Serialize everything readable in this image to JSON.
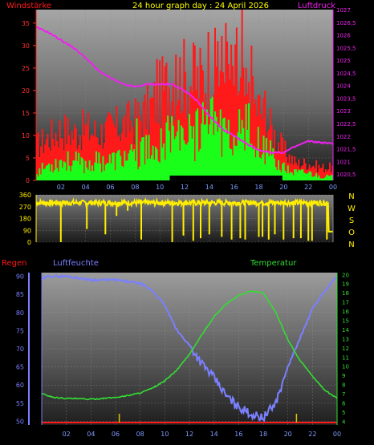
{
  "chart_data": [
    {
      "type": "line",
      "title": "24 hour graph day : 24 April 2026",
      "label_left": "Windstärke",
      "label_right": "Luftdruck",
      "x_ticks": [
        "02",
        "04",
        "06",
        "08",
        "10",
        "12",
        "14",
        "16",
        "18",
        "20",
        "22",
        "00"
      ],
      "y_left": {
        "lim": [
          0,
          38
        ],
        "ticks": [
          "0",
          "5",
          "10",
          "15",
          "20",
          "25",
          "30",
          "35"
        ]
      },
      "y_right": {
        "lim": [
          1020.25,
          1027
        ],
        "ticks": [
          "1020,5",
          "1021",
          "1021,5",
          "1022",
          "1022,5",
          "1023",
          "1023,5",
          "1024",
          "1024,5",
          "1025",
          "1025,5",
          "1026",
          "1026,5",
          "1027"
        ]
      },
      "series": [
        {
          "key": "gust",
          "color": "#ff1a1a",
          "control": [
            [
              0,
              8
            ],
            [
              1,
              10
            ],
            [
              2,
              12
            ],
            [
              3,
              11
            ],
            [
              4,
              12
            ],
            [
              5,
              11
            ],
            [
              6,
              12
            ],
            [
              7,
              13
            ],
            [
              8,
              14
            ],
            [
              9,
              16
            ],
            [
              10,
              20
            ],
            [
              11,
              24
            ],
            [
              12,
              24
            ],
            [
              13,
              23
            ],
            [
              14,
              25
            ],
            [
              15,
              26
            ],
            [
              16,
              24
            ],
            [
              17,
              19
            ],
            [
              18,
              17
            ],
            [
              19,
              12
            ],
            [
              20,
              7
            ],
            [
              21,
              4
            ],
            [
              22,
              4
            ],
            [
              23,
              3
            ],
            [
              24,
              3
            ]
          ],
          "spikes": [
            [
              9.7,
              27
            ],
            [
              11.2,
              28
            ],
            [
              12.8,
              30
            ],
            [
              13.9,
              33
            ],
            [
              14.6,
              31
            ],
            [
              15.3,
              35
            ],
            [
              16.1,
              34
            ],
            [
              16.6,
              38
            ],
            [
              17.3,
              30
            ],
            [
              18.4,
              20
            ]
          ]
        },
        {
          "key": "wind",
          "color": "#1aff1a",
          "control": [
            [
              0,
              2
            ],
            [
              1,
              4
            ],
            [
              2,
              5
            ],
            [
              3,
              5
            ],
            [
              4,
              4
            ],
            [
              5,
              5
            ],
            [
              6,
              5
            ],
            [
              7,
              6
            ],
            [
              8,
              6
            ],
            [
              9,
              8
            ],
            [
              10,
              10
            ],
            [
              11,
              13
            ],
            [
              12,
              12
            ],
            [
              13,
              12
            ],
            [
              14,
              14
            ],
            [
              15,
              14
            ],
            [
              16,
              13
            ],
            [
              17,
              10
            ],
            [
              18,
              9
            ],
            [
              19,
              6
            ],
            [
              20,
              3
            ],
            [
              21,
              2
            ],
            [
              22,
              2
            ],
            [
              23,
              1
            ],
            [
              24,
              1
            ]
          ]
        },
        {
          "key": "pressure",
          "color": "#ee22ee",
          "control": [
            [
              0,
              1026.3
            ],
            [
              1,
              1026.1
            ],
            [
              2,
              1025.8
            ],
            [
              3,
              1025.5
            ],
            [
              4,
              1025.1
            ],
            [
              5,
              1024.6
            ],
            [
              6,
              1024.3
            ],
            [
              7,
              1024.05
            ],
            [
              8,
              1023.95
            ],
            [
              9,
              1024.05
            ],
            [
              10,
              1024.05
            ],
            [
              11,
              1024.05
            ],
            [
              12,
              1023.8
            ],
            [
              13,
              1023.4
            ],
            [
              14,
              1022.8
            ],
            [
              15,
              1022.3
            ],
            [
              16,
              1022.0
            ],
            [
              17,
              1021.7
            ],
            [
              18,
              1021.45
            ],
            [
              19,
              1021.35
            ],
            [
              20,
              1021.35
            ],
            [
              21,
              1021.6
            ],
            [
              22,
              1021.8
            ],
            [
              23,
              1021.75
            ],
            [
              24,
              1021.7
            ]
          ]
        }
      ]
    },
    {
      "type": "line",
      "label_right": [
        "N",
        "W",
        "S",
        "O",
        "N"
      ],
      "x_ticks": [
        "02",
        "04",
        "06",
        "08",
        "10",
        "12",
        "14",
        "16",
        "18",
        "20",
        "22",
        "00"
      ],
      "y": {
        "lim": [
          0,
          360
        ],
        "ticks": [
          "0",
          "90",
          "180",
          "270",
          "360"
        ]
      },
      "series": [
        {
          "key": "direction",
          "color": "#ffee00",
          "base": 300,
          "dips": [
            [
              2.0,
              0
            ],
            [
              4.1,
              100
            ],
            [
              5.6,
              60
            ],
            [
              6.5,
              200
            ],
            [
              7.4,
              240
            ],
            [
              8.5,
              20
            ],
            [
              11.0,
              0
            ],
            [
              11.9,
              50
            ],
            [
              12.7,
              10
            ],
            [
              13.3,
              30
            ],
            [
              14.0,
              60
            ],
            [
              15.0,
              40
            ],
            [
              15.8,
              20
            ],
            [
              16.5,
              30
            ],
            [
              16.9,
              20
            ],
            [
              18.0,
              40
            ],
            [
              18.3,
              40
            ],
            [
              18.8,
              20
            ],
            [
              19.3,
              60
            ],
            [
              20.0,
              20
            ],
            [
              20.8,
              30
            ],
            [
              21.4,
              30
            ],
            [
              22.0,
              10
            ],
            [
              22.3,
              10
            ],
            [
              23.5,
              20
            ]
          ],
          "end_value": 80
        }
      ]
    },
    {
      "type": "line",
      "label_left": "Regen",
      "label_mid": "Luftfeuchte",
      "label_right": "Temperatur",
      "x_ticks": [
        "02",
        "04",
        "06",
        "08",
        "10",
        "12",
        "14",
        "16",
        "18",
        "20",
        "22",
        "00"
      ],
      "y_left": {
        "lim": [
          49,
          91
        ],
        "ticks": [
          "50",
          "55",
          "60",
          "65",
          "70",
          "75",
          "80",
          "85",
          "90"
        ]
      },
      "y_right": {
        "lim": [
          3.6,
          20.2
        ],
        "ticks": [
          "4",
          "5",
          "6",
          "7",
          "8",
          "9",
          "10",
          "11",
          "12",
          "13",
          "14",
          "15",
          "16",
          "17",
          "18",
          "19",
          "20"
        ]
      },
      "series": [
        {
          "key": "humidity",
          "color": "#7a80ff",
          "control": [
            [
              0,
              89
            ],
            [
              0.5,
              90
            ],
            [
              1,
              90
            ],
            [
              2,
              90
            ],
            [
              3,
              89.5
            ],
            [
              4,
              89
            ],
            [
              5,
              89
            ],
            [
              6,
              89
            ],
            [
              7,
              88.5
            ],
            [
              8,
              88
            ],
            [
              9,
              86
            ],
            [
              10,
              82
            ],
            [
              11,
              75
            ],
            [
              12,
              71
            ],
            [
              13,
              66
            ],
            [
              14,
              62
            ],
            [
              15,
              57
            ],
            [
              16,
              54
            ],
            [
              17,
              52
            ],
            [
              18,
              51
            ],
            [
              19,
              55
            ],
            [
              20,
              65
            ],
            [
              21,
              73
            ],
            [
              22,
              81
            ],
            [
              23,
              86
            ],
            [
              24,
              90
            ]
          ]
        },
        {
          "key": "temperature",
          "color": "#33dd33",
          "control": [
            [
              0,
              7.0
            ],
            [
              1,
              6.6
            ],
            [
              2,
              6.5
            ],
            [
              3,
              6.45
            ],
            [
              4,
              6.4
            ],
            [
              5,
              6.5
            ],
            [
              6,
              6.6
            ],
            [
              7,
              6.8
            ],
            [
              8,
              7.1
            ],
            [
              9,
              7.6
            ],
            [
              10,
              8.4
            ],
            [
              11,
              9.6
            ],
            [
              12,
              11.3
            ],
            [
              13,
              13.4
            ],
            [
              14,
              15.4
            ],
            [
              15,
              16.8
            ],
            [
              16,
              17.7
            ],
            [
              17,
              18.2
            ],
            [
              18,
              18.0
            ],
            [
              19,
              15.9
            ],
            [
              20,
              12.9
            ],
            [
              21,
              10.6
            ],
            [
              22,
              8.9
            ],
            [
              23,
              7.4
            ],
            [
              24,
              6.5
            ]
          ]
        }
      ],
      "rain_markers": [
        6.3,
        20.7
      ]
    }
  ]
}
